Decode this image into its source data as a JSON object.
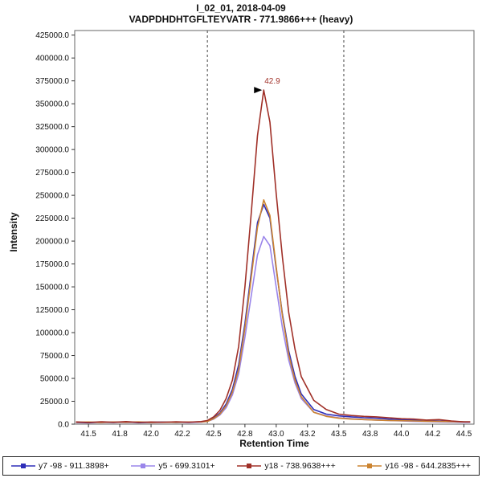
{
  "chart_data": {
    "type": "line",
    "title": "I_02_01, 2018-04-09",
    "subtitle": "VADPDHDHTGFLTEYVATR - 771.9866+++ (heavy)",
    "xlabel": "Retention Time",
    "ylabel": "Intensity",
    "xlim": [
      41.39,
      44.58
    ],
    "ylim": [
      0,
      430000
    ],
    "x_ticks": [
      41.5,
      41.75,
      42.0,
      42.25,
      42.5,
      42.75,
      43.0,
      43.25,
      43.5,
      43.75,
      44.0,
      44.25,
      44.5
    ],
    "x_tick_labels": [
      "41.5",
      "41.8",
      "42.0",
      "42.2",
      "42.5",
      "42.8",
      "43.0",
      "43.2",
      "43.5",
      "43.8",
      "44.0",
      "44.2",
      "44.5"
    ],
    "y_ticks": [
      0,
      25000,
      50000,
      75000,
      100000,
      125000,
      150000,
      175000,
      200000,
      225000,
      250000,
      275000,
      300000,
      325000,
      350000,
      375000,
      400000,
      425000
    ],
    "y_tick_labels": [
      "0.0",
      "25000.0",
      "50000.0",
      "75000.0",
      "100000.0",
      "125000.0",
      "150000.0",
      "175000.0",
      "200000.0",
      "225000.0",
      "250000.0",
      "275000.0",
      "300000.0",
      "325000.0",
      "350000.0",
      "375000.0",
      "400000.0",
      "425000.0"
    ],
    "grid": false,
    "legend_position": "bottom",
    "integration_boundaries": [
      42.45,
      43.54
    ],
    "peak_annotation": {
      "label": "42.9",
      "x": 42.9,
      "y": 365000,
      "color": "#a03028"
    },
    "draw_order": [
      1,
      0,
      3,
      2
    ],
    "x": [
      41.4,
      41.5,
      41.6,
      41.7,
      41.8,
      41.9,
      42.0,
      42.1,
      42.2,
      42.3,
      42.4,
      42.45,
      42.5,
      42.55,
      42.6,
      42.65,
      42.7,
      42.75,
      42.8,
      42.85,
      42.9,
      42.95,
      43.0,
      43.05,
      43.1,
      43.15,
      43.2,
      43.3,
      43.4,
      43.5,
      43.6,
      43.7,
      43.8,
      43.9,
      44.0,
      44.1,
      44.2,
      44.3,
      44.4,
      44.5,
      44.55
    ],
    "series": [
      {
        "name": "y7 -98 - 911.3898+",
        "color": "#2e2eb8",
        "values": [
          2000,
          1500,
          2200,
          1800,
          2500,
          1600,
          2000,
          2400,
          1800,
          2200,
          2600,
          3500,
          7000,
          12000,
          22000,
          38000,
          65000,
          110000,
          165000,
          220000,
          240000,
          225000,
          170000,
          120000,
          80000,
          52000,
          33000,
          16000,
          11000,
          9000,
          8000,
          7000,
          6500,
          5500,
          5000,
          4500,
          4000,
          3500,
          3000,
          2500,
          2500
        ]
      },
      {
        "name": "y5 - 699.3101+",
        "color": "#9a85ea",
        "values": [
          1500,
          2000,
          1600,
          2200,
          1700,
          2100,
          1600,
          2000,
          2300,
          1700,
          2200,
          3000,
          5500,
          10000,
          18000,
          32000,
          55000,
          95000,
          140000,
          185000,
          205000,
          195000,
          150000,
          105000,
          70000,
          45000,
          28000,
          13000,
          9000,
          7000,
          6000,
          5000,
          4500,
          4000,
          3500,
          3000,
          2800,
          2500,
          2200,
          2000,
          2000
        ]
      },
      {
        "name": "y18 - 738.9638+++",
        "color": "#a03028",
        "values": [
          2500,
          1800,
          2600,
          2000,
          2800,
          1900,
          2400,
          2000,
          2600,
          2100,
          2800,
          4000,
          8000,
          15000,
          28000,
          48000,
          85000,
          150000,
          230000,
          315000,
          365000,
          330000,
          252000,
          182000,
          122000,
          82000,
          52000,
          26000,
          16000,
          11000,
          9500,
          8500,
          8000,
          7000,
          6000,
          5500,
          4500,
          5000,
          3500,
          2500,
          2500
        ]
      },
      {
        "name": "y16 -98 - 644.2835+++",
        "color": "#cc8430",
        "values": [
          2000,
          2400,
          1800,
          2400,
          2000,
          2500,
          1800,
          2200,
          2000,
          2400,
          2500,
          3000,
          6000,
          11000,
          20000,
          35000,
          60000,
          105000,
          160000,
          215000,
          245000,
          228000,
          172000,
          118000,
          76000,
          48000,
          30000,
          13000,
          8500,
          6500,
          5500,
          5000,
          4500,
          4000,
          3800,
          3500,
          3200,
          3000,
          2800,
          2500,
          2500
        ]
      }
    ]
  }
}
